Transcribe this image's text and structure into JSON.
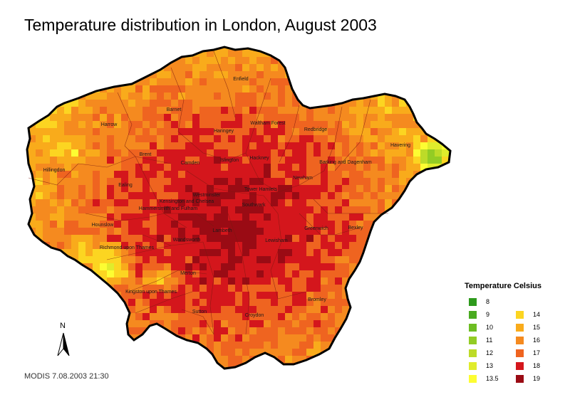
{
  "title": "Temperature distribution in London, August 2003",
  "footer": "MODIS  7.08.2003   21:30",
  "north_label": "N",
  "legend": {
    "title": "Temperature Celsius",
    "items": [
      {
        "label": "8",
        "color": "#2e9a1c"
      },
      {
        "label": "9",
        "color": "#4aab20"
      },
      {
        "label": "10",
        "color": "#6dbd22"
      },
      {
        "label": "11",
        "color": "#93cc24"
      },
      {
        "label": "12",
        "color": "#bddb28"
      },
      {
        "label": "13",
        "color": "#e0ec2c"
      },
      {
        "label": "13.5",
        "color": "#fdfd32"
      },
      {
        "label": "14",
        "color": "#fcd521"
      },
      {
        "label": "15",
        "color": "#f9ab1b"
      },
      {
        "label": "16",
        "color": "#f58a1f"
      },
      {
        "label": "17",
        "color": "#ef6420"
      },
      {
        "label": "18",
        "color": "#d4161c"
      },
      {
        "label": "19",
        "color": "#9a0b14"
      }
    ]
  },
  "boroughs": [
    "Enfield",
    "Barnet",
    "Harrow",
    "Haringey",
    "Waltham Forest",
    "Redbridge",
    "Havering",
    "Brent",
    "Hillingdon",
    "Camden",
    "Islington",
    "Hackney",
    "Barking and Dagenham",
    "Ealing",
    "Westminster",
    "Tower Hamlets",
    "Newham",
    "Kensington and Chelsea",
    "Hammersmith and Fulham",
    "Southwark",
    "Hounslow",
    "Lambeth",
    "Greenwich",
    "Bexley",
    "Wandsworth",
    "Lewisham",
    "Richmond upon Thames",
    "Merton",
    "Kingston upon Thames",
    "Sutton",
    "Croydon",
    "Bromley"
  ]
}
